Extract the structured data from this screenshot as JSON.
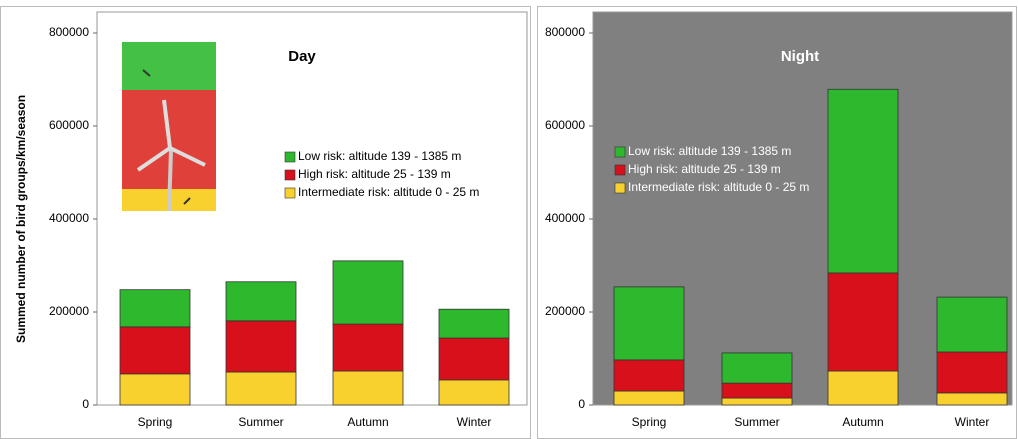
{
  "chart_data": [
    {
      "type": "bar",
      "stacked": true,
      "title": "Day",
      "y_label": "Summed number of bird groups/km/season",
      "categories": [
        "Spring",
        "Summer",
        "Autumn",
        "Winter"
      ],
      "series": [
        {
          "name": "Low risk: altitude 139 - 1385 m",
          "color": "#2db82d",
          "values": [
            80000,
            84000,
            136000,
            62000
          ]
        },
        {
          "name": "High risk: altitude 25 - 139 m",
          "color": "#d8101b",
          "values": [
            101000,
            110000,
            101000,
            90000
          ]
        },
        {
          "name": "Intermediate risk: altitude 0 - 25 m",
          "color": "#f9d12e",
          "values": [
            67000,
            71000,
            73000,
            54000
          ]
        }
      ],
      "ylim": [
        0,
        800000
      ],
      "yticks": [
        0,
        200000,
        400000,
        600000,
        800000
      ],
      "background": "#ffffff",
      "title_color": "#000000",
      "legend_text_color": "#000000"
    },
    {
      "type": "bar",
      "stacked": true,
      "title": "Night",
      "categories": [
        "Spring",
        "Summer",
        "Autumn",
        "Winter"
      ],
      "series": [
        {
          "name": "Low risk: altitude 139 - 1385 m",
          "color": "#2db82d",
          "values": [
            157000,
            65000,
            395000,
            118000
          ]
        },
        {
          "name": "High risk: altitude 25 - 139 m",
          "color": "#d8101b",
          "values": [
            67000,
            32000,
            211000,
            88000
          ]
        },
        {
          "name": "Intermediate risk: altitude 0 - 25 m",
          "color": "#f9d12e",
          "values": [
            30000,
            15000,
            73000,
            26000
          ]
        }
      ],
      "ylim": [
        0,
        800000
      ],
      "yticks": [
        0,
        200000,
        400000,
        600000,
        800000
      ],
      "background": "#808080",
      "title_color": "#ffffff",
      "legend_text_color": "#ffffff"
    }
  ]
}
